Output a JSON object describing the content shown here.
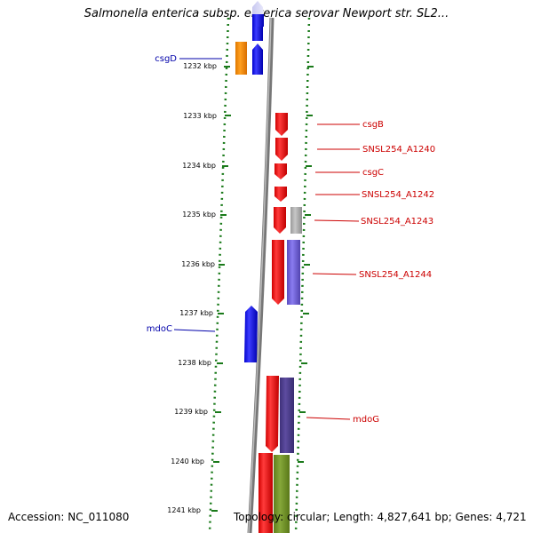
{
  "title": "Salmonella enterica subsp. enterica serovar Newport str. SL2...",
  "footer": {
    "accession": "Accession: NC_011080",
    "topology": "Topology: circular; Length: 4,827,641 bp; Genes: 4,721"
  },
  "kbp_labels": [
    "1232 kbp",
    "1233 kbp",
    "1234 kbp",
    "1235 kbp",
    "1236 kbp",
    "1237 kbp",
    "1238 kbp",
    "1239 kbp",
    "1240 kbp",
    "1241 kbp"
  ],
  "genes": [
    {
      "name": "csgD",
      "color": "#0000aa"
    },
    {
      "name": "mdoC",
      "color": "#0000aa"
    },
    {
      "name": "csgB",
      "color": "#cc0000"
    },
    {
      "name": "SNSL254_A1240",
      "color": "#cc0000"
    },
    {
      "name": "csgC",
      "color": "#cc0000"
    },
    {
      "name": "SNSL254_A1242",
      "color": "#cc0000"
    },
    {
      "name": "SNSL254_A1243",
      "color": "#cc0000"
    },
    {
      "name": "SNSL254_A1244",
      "color": "#cc0000"
    },
    {
      "name": "mdoG",
      "color": "#cc0000"
    }
  ],
  "colors": {
    "forward_strand": "#1a1aee",
    "reverse_strand": "#ee1111",
    "orange_feature": "#f08a00",
    "gray_feature": "#a8a8a8",
    "purple_feature": "#6a5acd",
    "dark_purple_feature": "#4b3a8c",
    "olive_feature": "#6b8e23",
    "tick_green": "#1a7a1a",
    "backbone": "#777777"
  }
}
